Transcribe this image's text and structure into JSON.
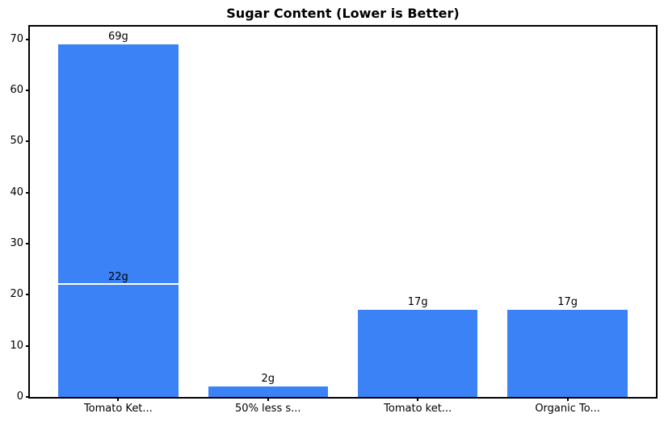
{
  "chart_data": {
    "type": "bar",
    "title": "Sugar Content (Lower is Better)",
    "xlabel": "",
    "ylabel": "",
    "categories": [
      "Tomato Ket...",
      "50% less s...",
      "Tomato ket...",
      "Organic To..."
    ],
    "bars": [
      {
        "category_index": 0,
        "value": 69,
        "label": "69g"
      },
      {
        "category_index": 0,
        "value": 22,
        "label": "22g",
        "overlay": true
      },
      {
        "category_index": 1,
        "value": 2,
        "label": "2g"
      },
      {
        "category_index": 2,
        "value": 17,
        "label": "17g"
      },
      {
        "category_index": 3,
        "value": 17,
        "label": "17g"
      }
    ],
    "yticks": [
      0,
      10,
      20,
      30,
      40,
      50,
      60,
      70
    ],
    "ylim": [
      0,
      72.45
    ],
    "xlim_slots": [
      -0.59,
      3.59
    ],
    "bar_width_fraction": 0.8,
    "grid": false,
    "legend": null,
    "colors": {
      "bar": "#3b82f6",
      "overlay_edge": "#ffffff",
      "axis": "#000000",
      "text": "#000000",
      "background": "#ffffff"
    }
  }
}
